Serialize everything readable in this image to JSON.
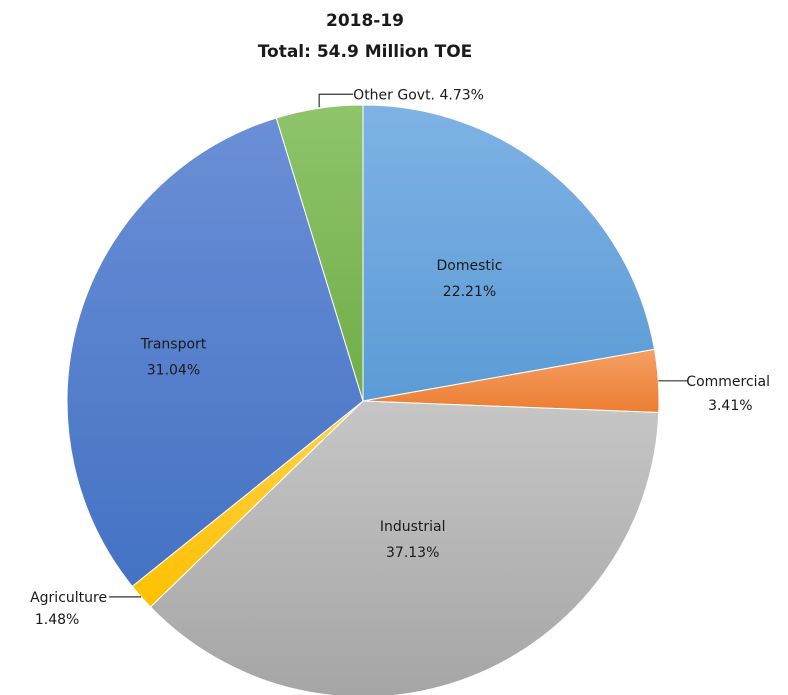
{
  "chart_data": {
    "type": "pie",
    "title": "2018-19",
    "subtitle": "Total: 54.9 Million TOE",
    "start_angle_deg": 0,
    "direction": "clockwise",
    "legend": "none",
    "slices": [
      {
        "name": "Domestic",
        "value": 22.21,
        "label": "22.21%",
        "color": "#5b9bd5",
        "color_light": "#7fb2e5"
      },
      {
        "name": "Commercial",
        "value": 3.41,
        "label": "3.41%",
        "color": "#ed7d31",
        "color_light": "#f4a064"
      },
      {
        "name": "Industrial",
        "value": 37.13,
        "label": "37.13%",
        "color": "#a5a5a5",
        "color_light": "#c6c6c6"
      },
      {
        "name": "Agriculture",
        "value": 1.48,
        "label": "1.48%",
        "color": "#ffc000",
        "color_light": "#ffd24d"
      },
      {
        "name": "Transport",
        "value": 31.04,
        "label": "31.04%",
        "color": "#4472c4",
        "color_light": "#6a8fd6"
      },
      {
        "name": "Other Govt.",
        "value": 4.73,
        "label": "4.73%",
        "color": "#70ad47",
        "color_light": "#8fc46b"
      }
    ]
  }
}
